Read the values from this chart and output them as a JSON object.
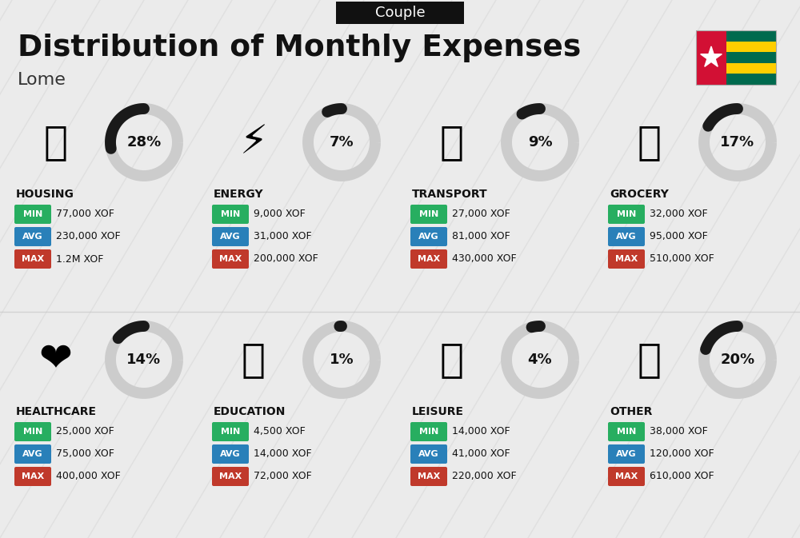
{
  "title": "Distribution of Monthly Expenses",
  "subtitle": "Lome",
  "header_label": "Couple",
  "background_color": "#ebebeb",
  "categories": [
    {
      "name": "HOUSING",
      "percent": 28,
      "emoji": "🏗️",
      "min": "77,000 XOF",
      "avg": "230,000 XOF",
      "max": "1.2M XOF",
      "row": 0,
      "col": 0
    },
    {
      "name": "ENERGY",
      "percent": 7,
      "emoji": "⚡",
      "min": "9,000 XOF",
      "avg": "31,000 XOF",
      "max": "200,000 XOF",
      "row": 0,
      "col": 1
    },
    {
      "name": "TRANSPORT",
      "percent": 9,
      "emoji": "🚌",
      "min": "27,000 XOF",
      "avg": "81,000 XOF",
      "max": "430,000 XOF",
      "row": 0,
      "col": 2
    },
    {
      "name": "GROCERY",
      "percent": 17,
      "emoji": "🛒",
      "min": "32,000 XOF",
      "avg": "95,000 XOF",
      "max": "510,000 XOF",
      "row": 0,
      "col": 3
    },
    {
      "name": "HEALTHCARE",
      "percent": 14,
      "emoji": "❤️",
      "min": "25,000 XOF",
      "avg": "75,000 XOF",
      "max": "400,000 XOF",
      "row": 1,
      "col": 0
    },
    {
      "name": "EDUCATION",
      "percent": 1,
      "emoji": "🎓",
      "min": "4,500 XOF",
      "avg": "14,000 XOF",
      "max": "72,000 XOF",
      "row": 1,
      "col": 1
    },
    {
      "name": "LEISURE",
      "percent": 4,
      "emoji": "🛍️",
      "min": "14,000 XOF",
      "avg": "41,000 XOF",
      "max": "220,000 XOF",
      "row": 1,
      "col": 2
    },
    {
      "name": "OTHER",
      "percent": 20,
      "emoji": "💰",
      "min": "38,000 XOF",
      "avg": "120,000 XOF",
      "max": "610,000 XOF",
      "row": 1,
      "col": 3
    }
  ],
  "min_color": "#27ae60",
  "avg_color": "#2980b9",
  "max_color": "#c0392b",
  "donut_dark": "#1a1a1a",
  "donut_light": "#cccccc",
  "stripe_colors": [
    "#006a4e",
    "#ffce00",
    "#006a4e",
    "#ffce00",
    "#006a4e"
  ],
  "flag_red": "#d21034"
}
